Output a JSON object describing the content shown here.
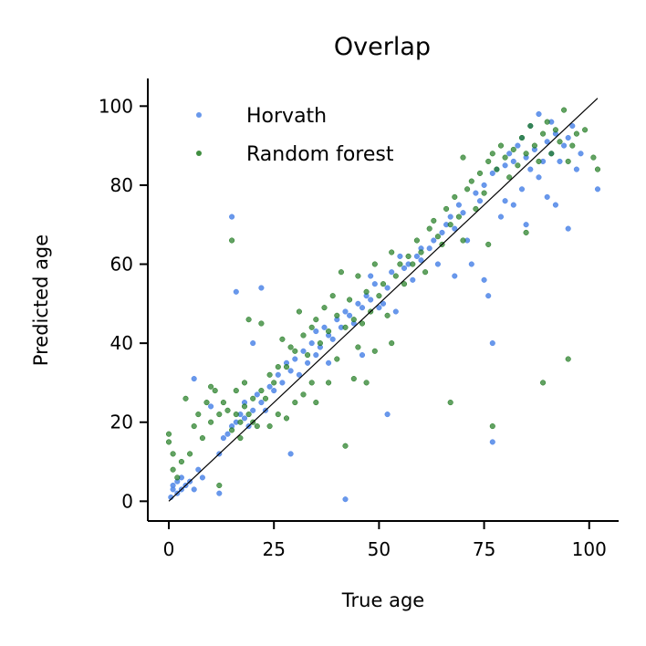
{
  "chart_data": {
    "type": "scatter",
    "title": "Overlap",
    "xlabel": "True age",
    "ylabel": "Predicted age",
    "xlim": [
      -5,
      107
    ],
    "ylim": [
      -5,
      107
    ],
    "xticks": [
      0,
      25,
      50,
      75,
      100
    ],
    "yticks": [
      0,
      20,
      40,
      60,
      80,
      100
    ],
    "grid": false,
    "legend_position": "top-left",
    "identity_line": {
      "from": [
        0,
        0
      ],
      "to": [
        102,
        102
      ],
      "color": "#000000"
    },
    "series": [
      {
        "name": "Horvath",
        "color": "#4f86e8",
        "points": [
          [
            0.5,
            1
          ],
          [
            1,
            3
          ],
          [
            1,
            4
          ],
          [
            2,
            2
          ],
          [
            2,
            5
          ],
          [
            3,
            3
          ],
          [
            3,
            6
          ],
          [
            4,
            4
          ],
          [
            5,
            5
          ],
          [
            6,
            3
          ],
          [
            7,
            8
          ],
          [
            8,
            6
          ],
          [
            6,
            31
          ],
          [
            10,
            24
          ],
          [
            12,
            2
          ],
          [
            12,
            12
          ],
          [
            13,
            16
          ],
          [
            14,
            17
          ],
          [
            15,
            19
          ],
          [
            15,
            72
          ],
          [
            16,
            53
          ],
          [
            16,
            20
          ],
          [
            17,
            22
          ],
          [
            18,
            21
          ],
          [
            18,
            25
          ],
          [
            19,
            19
          ],
          [
            20,
            23
          ],
          [
            20,
            40
          ],
          [
            21,
            27
          ],
          [
            22,
            25
          ],
          [
            22,
            54
          ],
          [
            23,
            23
          ],
          [
            24,
            29
          ],
          [
            25,
            28
          ],
          [
            26,
            32
          ],
          [
            27,
            30
          ],
          [
            28,
            35
          ],
          [
            29,
            33
          ],
          [
            29,
            12
          ],
          [
            30,
            36
          ],
          [
            31,
            32
          ],
          [
            32,
            38
          ],
          [
            33,
            35
          ],
          [
            34,
            40
          ],
          [
            35,
            43
          ],
          [
            35,
            37
          ],
          [
            36,
            39
          ],
          [
            37,
            44
          ],
          [
            38,
            42
          ],
          [
            38,
            35
          ],
          [
            39,
            41
          ],
          [
            40,
            46
          ],
          [
            41,
            44
          ],
          [
            42,
            48
          ],
          [
            42,
            0.5
          ],
          [
            43,
            47
          ],
          [
            44,
            45
          ],
          [
            45,
            50
          ],
          [
            46,
            49
          ],
          [
            46,
            37
          ],
          [
            47,
            52
          ],
          [
            48,
            51
          ],
          [
            48,
            57
          ],
          [
            49,
            55
          ],
          [
            50,
            49
          ],
          [
            51,
            50
          ],
          [
            52,
            54
          ],
          [
            52,
            22
          ],
          [
            53,
            58
          ],
          [
            54,
            48
          ],
          [
            55,
            62
          ],
          [
            56,
            59
          ],
          [
            57,
            60
          ],
          [
            58,
            56
          ],
          [
            59,
            62
          ],
          [
            60,
            64
          ],
          [
            60,
            61
          ],
          [
            62,
            64
          ],
          [
            63,
            66
          ],
          [
            64,
            60
          ],
          [
            65,
            68
          ],
          [
            66,
            70
          ],
          [
            67,
            72
          ],
          [
            68,
            69
          ],
          [
            68,
            57
          ],
          [
            69,
            75
          ],
          [
            70,
            73
          ],
          [
            71,
            66
          ],
          [
            72,
            60
          ],
          [
            73,
            78
          ],
          [
            74,
            76
          ],
          [
            75,
            80
          ],
          [
            75,
            56
          ],
          [
            76,
            52
          ],
          [
            77,
            83
          ],
          [
            77,
            15
          ],
          [
            77,
            40
          ],
          [
            78,
            84
          ],
          [
            79,
            72
          ],
          [
            80,
            85
          ],
          [
            80,
            76
          ],
          [
            81,
            88
          ],
          [
            82,
            86
          ],
          [
            82,
            75
          ],
          [
            83,
            90
          ],
          [
            84,
            92
          ],
          [
            84,
            79
          ],
          [
            85,
            87
          ],
          [
            85,
            70
          ],
          [
            86,
            95
          ],
          [
            86,
            84
          ],
          [
            87,
            89
          ],
          [
            88,
            98
          ],
          [
            88,
            82
          ],
          [
            89,
            86
          ],
          [
            90,
            91
          ],
          [
            90,
            77
          ],
          [
            91,
            96
          ],
          [
            91,
            88
          ],
          [
            92,
            93
          ],
          [
            92,
            75
          ],
          [
            93,
            86
          ],
          [
            94,
            90
          ],
          [
            95,
            92
          ],
          [
            95,
            69
          ],
          [
            96,
            95
          ],
          [
            97,
            84
          ],
          [
            98,
            88
          ],
          [
            102,
            79
          ]
        ]
      },
      {
        "name": "Random forest",
        "color": "#1f7a1f",
        "points": [
          [
            0,
            15
          ],
          [
            0,
            17
          ],
          [
            1,
            8
          ],
          [
            1,
            12
          ],
          [
            2,
            6
          ],
          [
            3,
            10
          ],
          [
            4,
            26
          ],
          [
            5,
            12
          ],
          [
            6,
            19
          ],
          [
            7,
            22
          ],
          [
            8,
            16
          ],
          [
            9,
            25
          ],
          [
            10,
            20
          ],
          [
            10,
            29
          ],
          [
            11,
            28
          ],
          [
            12,
            22
          ],
          [
            12,
            4
          ],
          [
            13,
            25
          ],
          [
            14,
            23
          ],
          [
            15,
            18
          ],
          [
            15,
            66
          ],
          [
            16,
            22
          ],
          [
            16,
            28
          ],
          [
            17,
            20
          ],
          [
            17,
            16
          ],
          [
            18,
            24
          ],
          [
            18,
            30
          ],
          [
            19,
            22
          ],
          [
            19,
            46
          ],
          [
            20,
            26
          ],
          [
            20,
            20
          ],
          [
            21,
            19
          ],
          [
            22,
            28
          ],
          [
            22,
            45
          ],
          [
            23,
            26
          ],
          [
            24,
            32
          ],
          [
            24,
            19
          ],
          [
            25,
            30
          ],
          [
            26,
            34
          ],
          [
            26,
            22
          ],
          [
            27,
            41
          ],
          [
            28,
            34
          ],
          [
            28,
            21
          ],
          [
            29,
            39
          ],
          [
            30,
            38
          ],
          [
            30,
            25
          ],
          [
            31,
            48
          ],
          [
            32,
            42
          ],
          [
            32,
            27
          ],
          [
            33,
            37
          ],
          [
            34,
            44
          ],
          [
            34,
            30
          ],
          [
            35,
            46
          ],
          [
            35,
            25
          ],
          [
            36,
            40
          ],
          [
            37,
            49
          ],
          [
            38,
            43
          ],
          [
            38,
            30
          ],
          [
            39,
            52
          ],
          [
            40,
            47
          ],
          [
            40,
            36
          ],
          [
            41,
            58
          ],
          [
            42,
            44
          ],
          [
            42,
            14
          ],
          [
            43,
            51
          ],
          [
            44,
            46
          ],
          [
            44,
            31
          ],
          [
            45,
            57
          ],
          [
            45,
            39
          ],
          [
            46,
            45
          ],
          [
            47,
            53
          ],
          [
            47,
            30
          ],
          [
            48,
            48
          ],
          [
            49,
            60
          ],
          [
            49,
            38
          ],
          [
            50,
            52
          ],
          [
            51,
            55
          ],
          [
            52,
            47
          ],
          [
            53,
            63
          ],
          [
            53,
            40
          ],
          [
            54,
            57
          ],
          [
            55,
            60
          ],
          [
            56,
            55
          ],
          [
            57,
            62
          ],
          [
            58,
            60
          ],
          [
            59,
            66
          ],
          [
            60,
            63
          ],
          [
            61,
            58
          ],
          [
            62,
            69
          ],
          [
            63,
            71
          ],
          [
            64,
            67
          ],
          [
            65,
            65
          ],
          [
            66,
            74
          ],
          [
            67,
            70
          ],
          [
            67,
            25
          ],
          [
            68,
            77
          ],
          [
            69,
            72
          ],
          [
            70,
            87
          ],
          [
            70,
            66
          ],
          [
            71,
            79
          ],
          [
            72,
            81
          ],
          [
            73,
            74
          ],
          [
            74,
            83
          ],
          [
            75,
            78
          ],
          [
            76,
            86
          ],
          [
            76,
            65
          ],
          [
            77,
            88
          ],
          [
            77,
            19
          ],
          [
            78,
            84
          ],
          [
            79,
            90
          ],
          [
            80,
            87
          ],
          [
            81,
            82
          ],
          [
            82,
            89
          ],
          [
            83,
            85
          ],
          [
            84,
            92
          ],
          [
            85,
            88
          ],
          [
            85,
            68
          ],
          [
            86,
            95
          ],
          [
            87,
            90
          ],
          [
            88,
            86
          ],
          [
            89,
            93
          ],
          [
            89,
            30
          ],
          [
            90,
            96
          ],
          [
            91,
            88
          ],
          [
            92,
            94
          ],
          [
            93,
            91
          ],
          [
            94,
            99
          ],
          [
            95,
            36
          ],
          [
            95,
            86
          ],
          [
            96,
            90
          ],
          [
            97,
            93
          ],
          [
            99,
            94
          ],
          [
            101,
            87
          ],
          [
            102,
            84
          ]
        ]
      }
    ]
  }
}
